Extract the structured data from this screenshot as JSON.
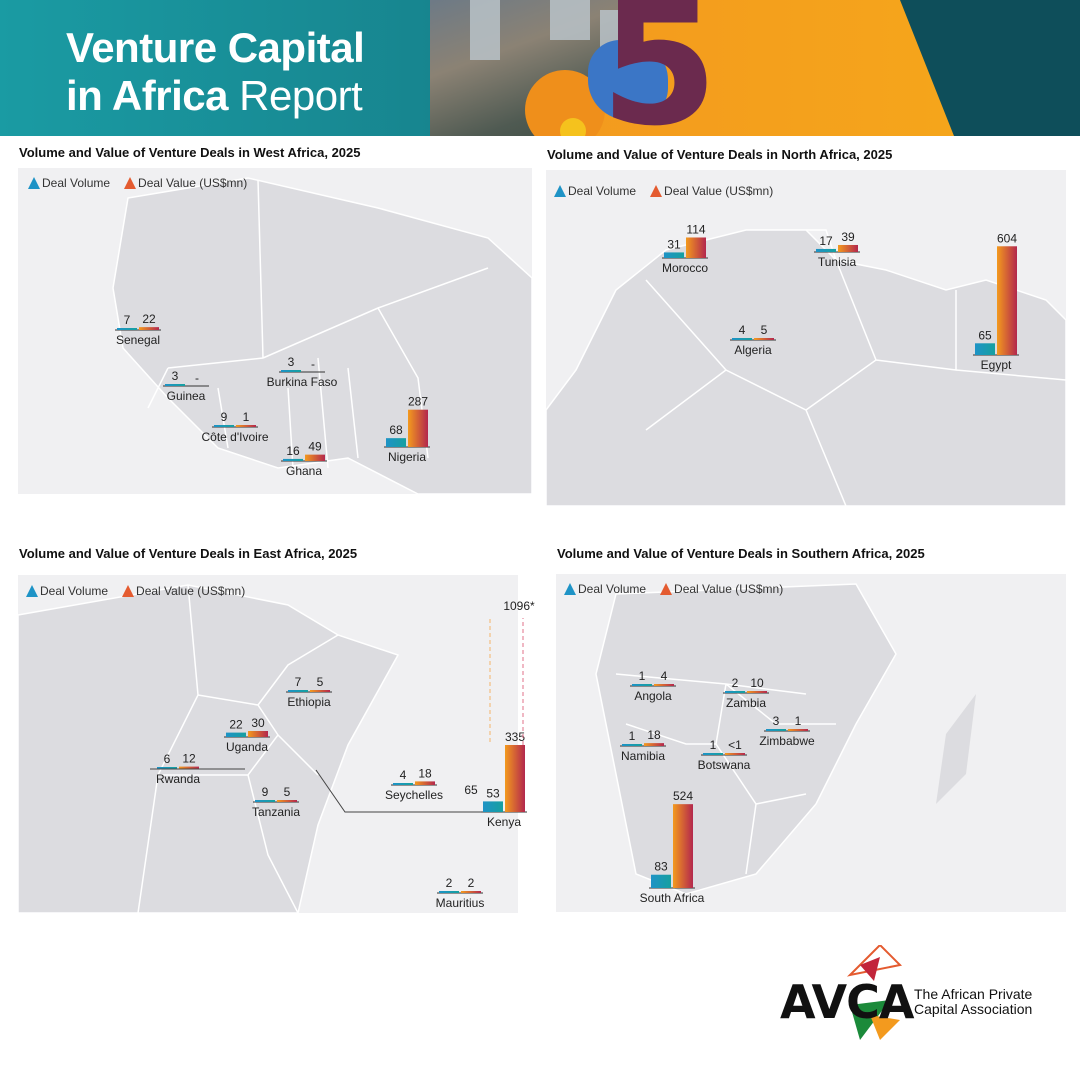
{
  "header": {
    "title_line1": "Venture Capital",
    "title_line2_bold": "in Africa",
    "title_line2_light": "Report",
    "big_digit": "5"
  },
  "legend": {
    "volume": "Deal Volume",
    "value": "Deal Value (US$mn)"
  },
  "colors": {
    "volume": "#1e93c6",
    "value_top": "#f39a1e",
    "value_bottom": "#b3274d",
    "map": "#dcdce0",
    "map_bg": "#f0f0f2"
  },
  "chart_data": [
    {
      "type": "bar",
      "title": "Volume and Value of Venture Deals in West Africa, 2025",
      "categories": [
        "Senegal",
        "Guinea",
        "Burkina Faso",
        "Côte d'Ivoire",
        "Ghana",
        "Nigeria"
      ],
      "series": [
        {
          "name": "Deal Volume",
          "values": [
            7,
            3,
            3,
            9,
            16,
            68
          ]
        },
        {
          "name": "Deal Value (US$mn)",
          "values": [
            22,
            null,
            null,
            1,
            49,
            287
          ]
        }
      ],
      "value_labels": [
        [
          "7",
          "22"
        ],
        [
          "3",
          "-"
        ],
        [
          "3",
          "-"
        ],
        [
          "9",
          "1"
        ],
        [
          "16",
          "49"
        ],
        [
          "68",
          "287"
        ]
      ]
    },
    {
      "type": "bar",
      "title": "Volume and Value of Venture Deals in North Africa, 2025",
      "categories": [
        "Morocco",
        "Tunisia",
        "Algeria",
        "Egypt"
      ],
      "series": [
        {
          "name": "Deal Volume",
          "values": [
            31,
            17,
            4,
            65
          ]
        },
        {
          "name": "Deal Value (US$mn)",
          "values": [
            114,
            39,
            5,
            604
          ]
        }
      ],
      "value_labels": [
        [
          "31",
          "114"
        ],
        [
          "17",
          "39"
        ],
        [
          "4",
          "5"
        ],
        [
          "65",
          "604"
        ]
      ]
    },
    {
      "type": "bar",
      "title": "Volume and Value of Venture Deals in East Africa, 2025",
      "categories": [
        "Ethiopia",
        "Uganda",
        "Rwanda",
        "Tanzania",
        "Seychelles",
        "Kenya",
        "Mauritius"
      ],
      "series": [
        {
          "name": "Deal Volume",
          "values": [
            7,
            22,
            6,
            9,
            4,
            53,
            2
          ]
        },
        {
          "name": "Deal Value (US$mn)",
          "values": [
            5,
            30,
            12,
            5,
            18,
            335,
            2
          ]
        }
      ],
      "value_labels": [
        [
          "7",
          "5"
        ],
        [
          "22",
          "30"
        ],
        [
          "6",
          "12"
        ],
        [
          "9",
          "5"
        ],
        [
          "4",
          "18"
        ],
        [
          "53",
          "335"
        ],
        [
          "2",
          "2"
        ]
      ],
      "kenya_extra": {
        "volume_label": "65",
        "value_label": "1096*"
      }
    },
    {
      "type": "bar",
      "title": "Volume and Value of Venture Deals in Southern Africa, 2025",
      "categories": [
        "Angola",
        "Zambia",
        "Namibia",
        "Botswana",
        "Zimbabwe",
        "South Africa"
      ],
      "series": [
        {
          "name": "Deal Volume",
          "values": [
            1,
            2,
            1,
            1,
            3,
            83
          ]
        },
        {
          "name": "Deal Value (US$mn)",
          "values": [
            4,
            10,
            18,
            0.5,
            1,
            524
          ]
        }
      ],
      "value_labels": [
        [
          "1",
          "4"
        ],
        [
          "2",
          "10"
        ],
        [
          "1",
          "18"
        ],
        [
          "1",
          "<1"
        ],
        [
          "3",
          "1"
        ],
        [
          "83",
          "524"
        ]
      ]
    }
  ],
  "logo": {
    "wordmark": "AVCA",
    "tagline_line1": "The African Private",
    "tagline_line2": "Capital Association"
  }
}
